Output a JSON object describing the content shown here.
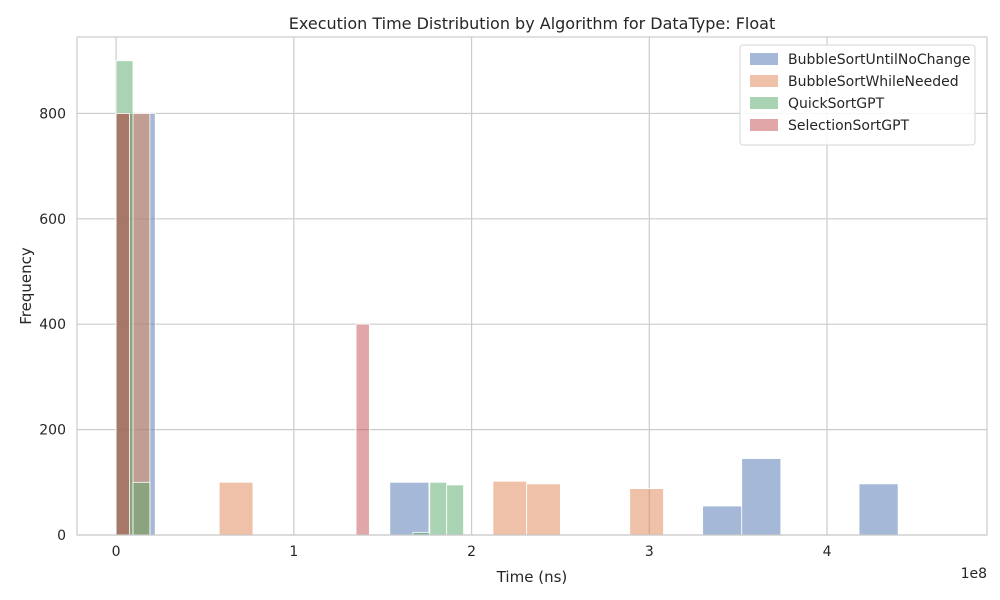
{
  "chart_data": {
    "type": "bar",
    "title": "Execution Time Distribution by Algorithm for DataType: Float",
    "xlabel": "Time (ns)",
    "ylabel": "Frequency",
    "x_scale_note": "1e8",
    "xlim": [
      -0.22,
      4.9
    ],
    "ylim": [
      0,
      945
    ],
    "x_ticks": [
      0,
      1,
      2,
      3,
      4
    ],
    "x_tick_labels": [
      "0",
      "1",
      "2",
      "3",
      "4"
    ],
    "y_ticks": [
      0,
      200,
      400,
      600,
      800
    ],
    "y_tick_labels": [
      "0",
      "200",
      "400",
      "600",
      "800"
    ],
    "grid": true,
    "legend_position": "top-right",
    "series": [
      {
        "name": "BubbleSortUntilNoChange",
        "color": "#4c72b0",
        "bins": [
          {
            "x0": 0.0,
            "x1": 0.22,
            "count": 800
          },
          {
            "x0": 1.54,
            "x1": 1.76,
            "count": 100
          },
          {
            "x0": 3.3,
            "x1": 3.52,
            "count": 55
          },
          {
            "x0": 3.52,
            "x1": 3.74,
            "count": 145
          },
          {
            "x0": 4.18,
            "x1": 4.4,
            "count": 97
          }
        ]
      },
      {
        "name": "BubbleSortWhileNeeded",
        "color": "#dd8452",
        "bins": [
          {
            "x0": 0.0,
            "x1": 0.19,
            "count": 800
          },
          {
            "x0": 0.58,
            "x1": 0.77,
            "count": 100
          },
          {
            "x0": 2.12,
            "x1": 2.31,
            "count": 102
          },
          {
            "x0": 2.31,
            "x1": 2.5,
            "count": 97
          },
          {
            "x0": 2.89,
            "x1": 3.08,
            "count": 88
          }
        ]
      },
      {
        "name": "QuickSortGPT",
        "color": "#55a868",
        "bins": [
          {
            "x0": 0.0,
            "x1": 0.095,
            "count": 900
          },
          {
            "x0": 0.095,
            "x1": 0.19,
            "count": 100
          },
          {
            "x0": 1.67,
            "x1": 1.765,
            "count": 5
          },
          {
            "x0": 1.765,
            "x1": 1.86,
            "count": 100
          },
          {
            "x0": 1.86,
            "x1": 1.955,
            "count": 95
          }
        ]
      },
      {
        "name": "SelectionSortGPT",
        "color": "#c44e52",
        "bins": [
          {
            "x0": 0.0,
            "x1": 0.075,
            "count": 800
          },
          {
            "x0": 1.35,
            "x1": 1.425,
            "count": 400
          }
        ]
      }
    ]
  }
}
